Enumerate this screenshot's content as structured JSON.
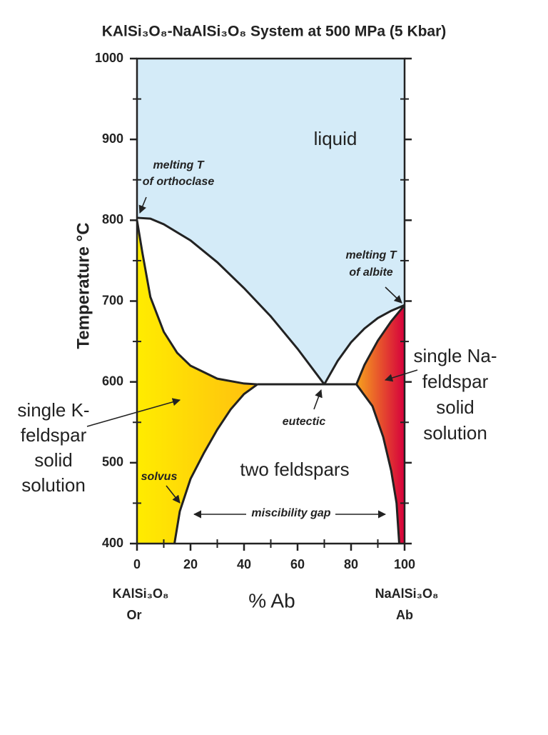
{
  "chart_data": {
    "type": "phase-diagram",
    "title": "KAlSi₃O₈-NaAlSi₃O₈ System at 500 MPa (5 Kbar)",
    "x_label": "% Ab",
    "y_label": "Temperature °C",
    "x_end_labels": [
      [
        "KAlSi₃O₈",
        "Or"
      ],
      [
        "NaAlSi₃O₈",
        "Ab"
      ]
    ],
    "xlim": [
      0,
      100
    ],
    "ylim": [
      400,
      1000
    ],
    "xticks": [
      0,
      20,
      40,
      60,
      80,
      100
    ],
    "yticks": [
      400,
      500,
      600,
      700,
      800,
      900,
      1000
    ],
    "region_colors": {
      "liquid": "#d4ebf8",
      "k_left": "#ffec00",
      "k_right": "#ffbf10",
      "na_left": "#f7a21e",
      "na_right": "#d6003c"
    },
    "line_color": "#222222",
    "series": [
      {
        "x": [
          0,
          5,
          10,
          20,
          30,
          40,
          50,
          60,
          70
        ],
        "values": [
          803,
          802,
          795,
          775,
          748,
          716,
          681,
          641,
          597
        ]
      },
      {
        "x": [
          70,
          75,
          80,
          85,
          90,
          95,
          100
        ],
        "values": [
          597,
          626,
          649,
          666,
          679,
          688,
          695
        ]
      },
      {
        "x": [
          0,
          2,
          5,
          10,
          15,
          20,
          30,
          40,
          45
        ],
        "values": [
          800,
          760,
          705,
          662,
          636,
          620,
          604,
          598,
          597
        ]
      },
      {
        "x": [
          45,
          82
        ],
        "values": [
          597,
          597
        ]
      },
      {
        "x": [
          82,
          85,
          90,
          95,
          100
        ],
        "values": [
          597,
          621,
          651,
          675,
          695
        ]
      },
      {
        "x": [
          14,
          16,
          20,
          25,
          30,
          35,
          40,
          45
        ],
        "values": [
          400,
          440,
          480,
          512,
          541,
          566,
          585,
          597
        ]
      },
      {
        "x": [
          82,
          88,
          92,
          95,
          97,
          98
        ],
        "values": [
          597,
          570,
          532,
          490,
          450,
          400
        ]
      }
    ],
    "annotations": [
      {
        "lines": [
          "liquid"
        ]
      },
      {
        "lines": [
          "melting T",
          "of orthoclase"
        ]
      },
      {
        "lines": [
          "melting T",
          "of albite"
        ]
      },
      {
        "lines": [
          "single Na-",
          "feldspar",
          "solid",
          "solution"
        ]
      },
      {
        "lines": [
          "single K-",
          "feldspar",
          "solid",
          "solution"
        ]
      },
      {
        "lines": [
          "eutectic"
        ]
      },
      {
        "lines": [
          "two feldspars"
        ]
      },
      {
        "lines": [
          "solvus"
        ]
      },
      {
        "lines": [
          "miscibility gap"
        ]
      }
    ]
  }
}
